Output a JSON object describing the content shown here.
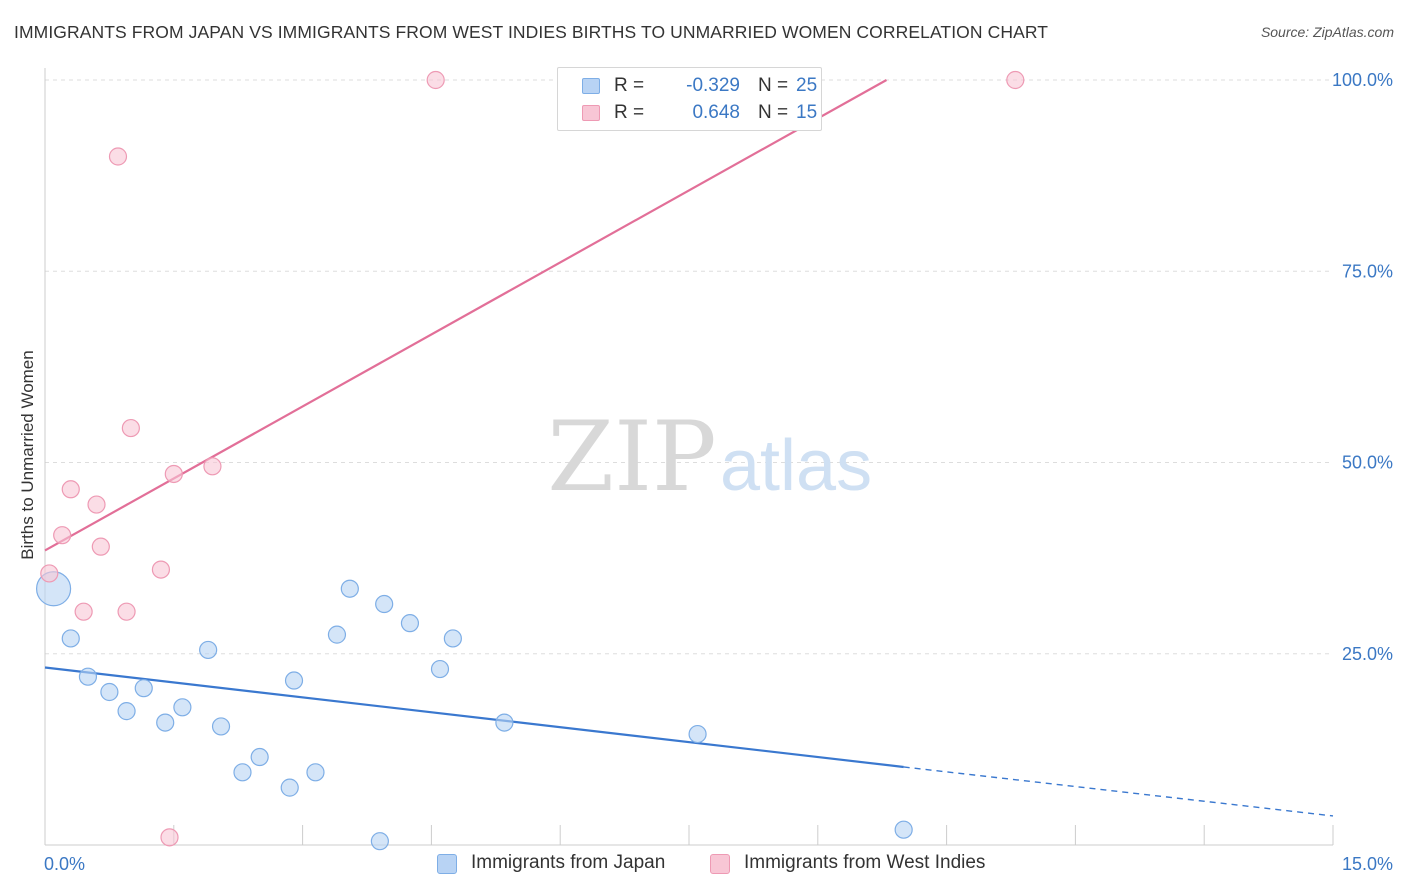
{
  "title": "IMMIGRANTS FROM JAPAN VS IMMIGRANTS FROM WEST INDIES BIRTHS TO UNMARRIED WOMEN CORRELATION CHART",
  "source": "Source: ZipAtlas.com",
  "watermark": {
    "zip": "ZIP",
    "atlas": "atlas"
  },
  "legend": {
    "japan": {
      "r_label": "R =",
      "r_value": "-0.329",
      "n_label": "N =",
      "n_value": "25"
    },
    "westindies": {
      "r_label": "R =",
      "r_value": "0.648",
      "n_label": "N =",
      "n_value": "15"
    }
  },
  "bottom_legend": {
    "japan": "Immigrants from Japan",
    "westindies": "Immigrants from West Indies"
  },
  "colors": {
    "japan_fill": "#b8d3f4",
    "japan_stroke": "#7eaee6",
    "japan_line": "#3a78cf",
    "wi_fill": "#f8c6d5",
    "wi_stroke": "#ee9ab4",
    "wi_line": "#e26f98",
    "tick_text": "#3b78c4",
    "grid": "#dddddd"
  },
  "chart_data": {
    "type": "scatter",
    "title": "IMMIGRANTS FROM JAPAN VS IMMIGRANTS FROM WEST INDIES BIRTHS TO UNMARRIED WOMEN CORRELATION CHART",
    "xlabel": "",
    "ylabel": "Births to Unmarried Women",
    "xlim": [
      0,
      15
    ],
    "ylim": [
      0,
      100
    ],
    "x_ticks": [
      0,
      1.5,
      3,
      4.5,
      6,
      7.5,
      9,
      10.5,
      12,
      13.5,
      15
    ],
    "x_tick_labels": [
      {
        "value": 0,
        "label": "0.0%"
      },
      {
        "value": 15,
        "label": "15.0%"
      }
    ],
    "y_tick_labels": [
      {
        "value": 25,
        "label": "25.0%"
      },
      {
        "value": 50,
        "label": "50.0%"
      },
      {
        "value": 75,
        "label": "75.0%"
      },
      {
        "value": 100,
        "label": "100.0%"
      }
    ],
    "grid": true,
    "series": [
      {
        "name": "Immigrants from Japan",
        "key": "japan",
        "r": -0.329,
        "n": 25,
        "points": [
          {
            "x": 0.1,
            "y": 33.5,
            "big": true
          },
          {
            "x": 0.3,
            "y": 27.0
          },
          {
            "x": 0.5,
            "y": 22.0
          },
          {
            "x": 0.75,
            "y": 20.0
          },
          {
            "x": 0.95,
            "y": 17.5
          },
          {
            "x": 1.15,
            "y": 20.5
          },
          {
            "x": 1.4,
            "y": 16.0
          },
          {
            "x": 1.6,
            "y": 18.0
          },
          {
            "x": 1.9,
            "y": 25.5
          },
          {
            "x": 2.05,
            "y": 15.5
          },
          {
            "x": 2.3,
            "y": 9.5
          },
          {
            "x": 2.5,
            "y": 11.5
          },
          {
            "x": 2.85,
            "y": 7.5
          },
          {
            "x": 2.9,
            "y": 21.5
          },
          {
            "x": 3.15,
            "y": 9.5
          },
          {
            "x": 3.4,
            "y": 27.5
          },
          {
            "x": 3.55,
            "y": 33.5
          },
          {
            "x": 3.9,
            "y": 0.5
          },
          {
            "x": 3.95,
            "y": 31.5
          },
          {
            "x": 4.25,
            "y": 29.0
          },
          {
            "x": 4.6,
            "y": 23.0
          },
          {
            "x": 4.75,
            "y": 27.0
          },
          {
            "x": 5.35,
            "y": 16.0
          },
          {
            "x": 7.6,
            "y": 14.5
          },
          {
            "x": 10.0,
            "y": 2.0
          }
        ],
        "trend": {
          "x0": 0,
          "y0": 23.2,
          "x1": 10.0,
          "y1": 10.2,
          "dash_to_x": 15,
          "dash_to_y": 3.8
        }
      },
      {
        "name": "Immigrants from West Indies",
        "key": "westindies",
        "r": 0.648,
        "n": 15,
        "points": [
          {
            "x": 0.05,
            "y": 35.5
          },
          {
            "x": 0.2,
            "y": 40.5
          },
          {
            "x": 0.3,
            "y": 46.5
          },
          {
            "x": 0.45,
            "y": 30.5
          },
          {
            "x": 0.6,
            "y": 44.5
          },
          {
            "x": 0.65,
            "y": 39.0
          },
          {
            "x": 0.85,
            "y": 90.0
          },
          {
            "x": 0.95,
            "y": 30.5
          },
          {
            "x": 1.0,
            "y": 54.5
          },
          {
            "x": 1.35,
            "y": 36.0
          },
          {
            "x": 1.45,
            "y": 1.0
          },
          {
            "x": 1.5,
            "y": 48.5
          },
          {
            "x": 1.95,
            "y": 49.5
          },
          {
            "x": 4.55,
            "y": 100.0
          },
          {
            "x": 11.3,
            "y": 100.0
          }
        ],
        "trend": {
          "x0": 0,
          "y0": 38.5,
          "x1": 9.8,
          "y1": 100.0
        }
      }
    ]
  }
}
